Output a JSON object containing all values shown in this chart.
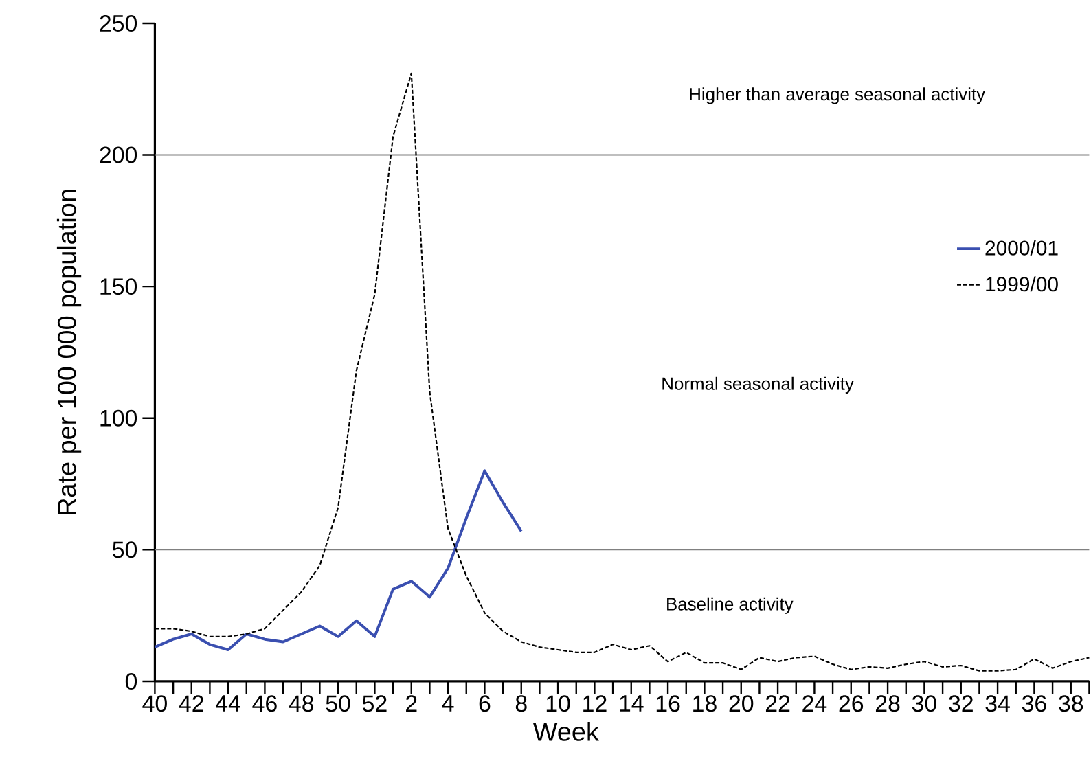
{
  "chart_data": {
    "type": "line",
    "xlabel": "Week",
    "ylabel": "Rate per 100 000 population",
    "categories": [
      "40",
      null,
      "42",
      null,
      "44",
      null,
      "46",
      null,
      "48",
      null,
      "50",
      null,
      "52",
      null,
      "2",
      null,
      "4",
      null,
      "6",
      null,
      "8",
      null,
      "10",
      null,
      "12",
      null,
      "14",
      null,
      "16",
      null,
      "18",
      null,
      "20",
      null,
      "22",
      null,
      "24",
      null,
      "26",
      null,
      "28",
      null,
      "30",
      null,
      "32",
      null,
      "34",
      null,
      "36",
      null,
      "38",
      null
    ],
    "series": [
      {
        "name": "2000/01",
        "color": "#3a4fb0",
        "line_style": "solid",
        "values": [
          13,
          16,
          18,
          14,
          12,
          18,
          16,
          15,
          18,
          21,
          17,
          23,
          17,
          35,
          38,
          32,
          43,
          62,
          80,
          68,
          57,
          null,
          null,
          null,
          null,
          null,
          null,
          null,
          null,
          null,
          null,
          null,
          null,
          null,
          null,
          null,
          null,
          null,
          null,
          null,
          null,
          null,
          null,
          null,
          null,
          null,
          null,
          null,
          null,
          null,
          null,
          null
        ]
      },
      {
        "name": "1999/00",
        "color": "#000000",
        "line_style": "dashed",
        "values": [
          20,
          20,
          19,
          17,
          17,
          18,
          20,
          27,
          34,
          44,
          66,
          118,
          147,
          207,
          231,
          110,
          58,
          40,
          26,
          19,
          15,
          13,
          12,
          11,
          11,
          14,
          12,
          13.5,
          7.5,
          11,
          7,
          7,
          4.5,
          9,
          7.5,
          9,
          9.5,
          6.5,
          4.5,
          5.5,
          5,
          6.5,
          7.5,
          5.5,
          6,
          4,
          4,
          4.5,
          8.5,
          5,
          7.5,
          9
        ]
      }
    ],
    "ylim": [
      0,
      250
    ],
    "yticks": [
      0,
      50,
      100,
      150,
      200,
      250
    ],
    "ref_lines": [
      {
        "axis": "y",
        "value": 50,
        "color": "#808080"
      },
      {
        "axis": "y",
        "value": 200,
        "color": "#808080"
      }
    ],
    "annotations": [
      "Higher than average seasonal activity",
      "Normal seasonal activity",
      "Baseline activity"
    ],
    "legend": "right",
    "marker": "none"
  }
}
